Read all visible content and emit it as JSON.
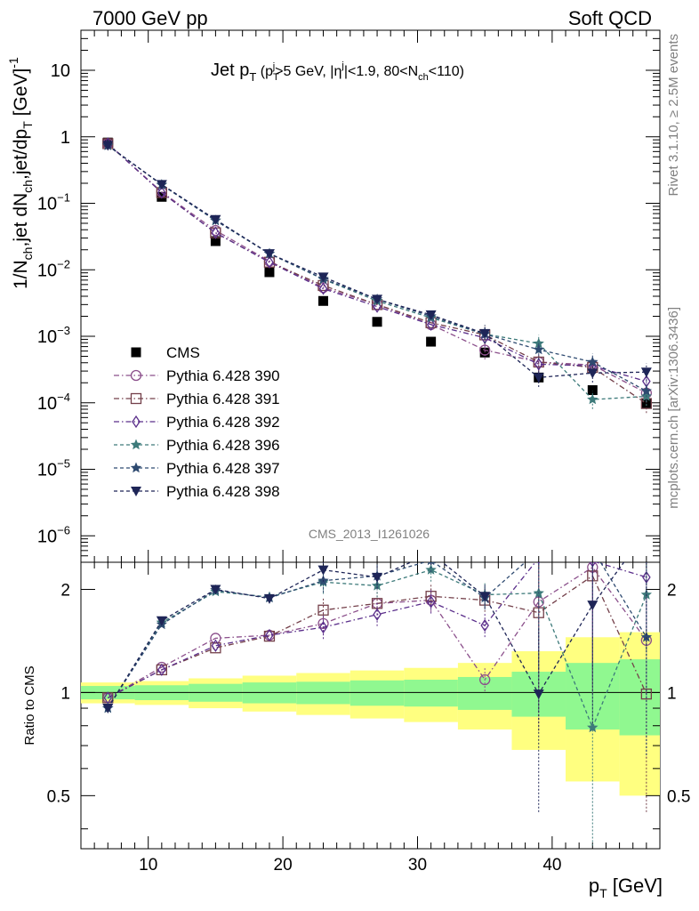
{
  "header": {
    "left": "7000 GeV pp",
    "right": "Soft QCD"
  },
  "side": {
    "rivet": "Rivet 3.1.10, ≥ 2.5M events",
    "mcplots": "mcplots.cern.ch [arXiv:1306.3436]"
  },
  "analysis_label": "CMS_2013_I1261026",
  "title": {
    "text": "Jet p",
    "sub_T": "T",
    "cut_open": " (p",
    "cut_sup_j": "j",
    "cut_mid": ">5 GeV, |η",
    "cut_sup_j2": "j",
    "cut_mid2": "|<1.9, 80<N",
    "cut_sub_ch": "ch",
    "cut_close": "<110)"
  },
  "ylabel_main": {
    "a": "1/N",
    "sub1": "ch",
    "b": ",jet dN",
    "sub2": "ch",
    "c": ",jet/dp",
    "sub3": "T",
    "d": " [GeV]",
    "sup": "-1"
  },
  "ylabel_ratio": "Ratio to CMS",
  "xlabel": {
    "a": "p",
    "sub": "T",
    "b": " [GeV]"
  },
  "main_ticks": [
    {
      "v": 10,
      "label": "10"
    },
    {
      "v": 1,
      "label": "1"
    },
    {
      "v": 0.1,
      "label": "10",
      "exp": "−1"
    },
    {
      "v": 0.01,
      "label": "10",
      "exp": "−2"
    },
    {
      "v": 0.001,
      "label": "10",
      "exp": "−3"
    },
    {
      "v": 0.0001,
      "label": "10",
      "exp": "−4"
    },
    {
      "v": 1e-05,
      "label": "10",
      "exp": "−5"
    },
    {
      "v": 1e-06,
      "label": "10",
      "exp": "−6"
    }
  ],
  "ratio_ticks": [
    {
      "v": 2,
      "label": "2"
    },
    {
      "v": 1,
      "label": "1"
    },
    {
      "v": 0.5,
      "label": "0.5"
    }
  ],
  "x_ticks": [
    {
      "v": 10,
      "label": "10"
    },
    {
      "v": 20,
      "label": "20"
    },
    {
      "v": 30,
      "label": "30"
    },
    {
      "v": 40,
      "label": "40"
    }
  ],
  "chart_data": {
    "type": "scatter",
    "x_scale": "linear",
    "y_scale": "log",
    "xlim": [
      5,
      48
    ],
    "ylim": [
      4e-07,
      40
    ],
    "ratio_ylim": [
      0.35,
      2.4
    ],
    "x": [
      7,
      11,
      15,
      19,
      23,
      27,
      31,
      35,
      39,
      43,
      47
    ],
    "x_bin_edges": [
      5,
      9,
      13,
      17,
      21,
      25,
      29,
      33,
      37,
      41,
      45,
      49
    ],
    "legend_position": "middle-left",
    "series": [
      {
        "name": "CMS",
        "color": "#000000",
        "marker": "square",
        "dash": "",
        "values": [
          0.82,
          0.125,
          0.027,
          0.0092,
          0.0034,
          0.00165,
          0.00083,
          0.00057,
          0.00024,
          0.000155,
          9.75e-05
        ],
        "ratio": [
          1,
          1,
          1,
          1,
          1,
          1,
          1,
          1,
          1,
          1,
          1
        ]
      },
      {
        "name": "Pythia 6.428 390",
        "color": "#8b4f8b",
        "marker": "circle-open",
        "dash": "6,3,1.5,3",
        "values": [
          0.79,
          0.148,
          0.039,
          0.0135,
          0.0054,
          0.003,
          0.0015,
          0.00062,
          0.00041,
          0.00037,
          0.00014
        ],
        "ratio": [
          0.965,
          1.185,
          1.44,
          1.47,
          1.59,
          1.82,
          1.86,
          1.09,
          1.84,
          2.32,
          1.42
        ]
      },
      {
        "name": "Pythia 6.428 391",
        "color": "#74404a",
        "marker": "square-open",
        "dash": "6,3,1.5,3",
        "values": [
          0.79,
          0.145,
          0.036,
          0.013,
          0.0058,
          0.003,
          0.0016,
          0.00105,
          0.00041,
          0.00034,
          9.75e-05
        ],
        "ratio": [
          0.965,
          1.165,
          1.35,
          1.46,
          1.74,
          1.82,
          1.91,
          1.86,
          1.71,
          2.19,
          0.99
        ]
      },
      {
        "name": "Pythia 6.428 392",
        "color": "#5b2f8b",
        "marker": "diamond-open",
        "dash": "6,3,1.5,3",
        "values": [
          0.79,
          0.145,
          0.036,
          0.013,
          0.0052,
          0.0028,
          0.0015,
          0.00095,
          0.00038,
          0.00036,
          0.00021
        ],
        "ratio": [
          0.965,
          1.165,
          1.37,
          1.47,
          1.55,
          1.69,
          1.84,
          1.57,
          2.47,
          2.42,
          2.17
        ]
      },
      {
        "name": "Pythia 6.428 396",
        "color": "#3d7a7a",
        "marker": "star-filled",
        "dash": "4,3",
        "values": [
          0.74,
          0.19,
          0.055,
          0.0175,
          0.0072,
          0.0034,
          0.0019,
          0.00108,
          0.00078,
          0.000112,
          0.000125
        ],
        "ratio": [
          0.9,
          1.6,
          1.97,
          1.9,
          2.1,
          2.05,
          2.28,
          1.93,
          1.95,
          0.79,
          1.93
        ]
      },
      {
        "name": "Pythia 6.428 397",
        "color": "#2e4a70",
        "marker": "star-filled",
        "dash": "4,3",
        "values": [
          0.74,
          0.19,
          0.055,
          0.0175,
          0.0073,
          0.0036,
          0.002,
          0.00108,
          0.00063,
          0.00041,
          0.00015
        ],
        "ratio": [
          0.9,
          1.58,
          1.99,
          1.89,
          2.12,
          2.19,
          2.43,
          1.89,
          2.6,
          2.62,
          1.45
        ]
      },
      {
        "name": "Pythia 6.428 398",
        "color": "#1e2557",
        "marker": "triangle-down-filled",
        "dash": "4,3",
        "values": [
          0.74,
          0.192,
          0.057,
          0.0175,
          0.0078,
          0.0036,
          0.0021,
          0.0011,
          0.00024,
          0.00028,
          0.00029
        ],
        "ratio": [
          0.9,
          1.62,
          2.0,
          1.88,
          2.28,
          2.17,
          2.55,
          1.91,
          0.99,
          1.8,
          2.95
        ]
      }
    ],
    "cms_band": {
      "inner": [
        0.045,
        0.05,
        0.06,
        0.07,
        0.075,
        0.085,
        0.09,
        0.11,
        0.15,
        0.22,
        0.25
      ],
      "outer": [
        0.07,
        0.08,
        0.1,
        0.12,
        0.14,
        0.16,
        0.18,
        0.22,
        0.32,
        0.45,
        0.5
      ]
    }
  }
}
